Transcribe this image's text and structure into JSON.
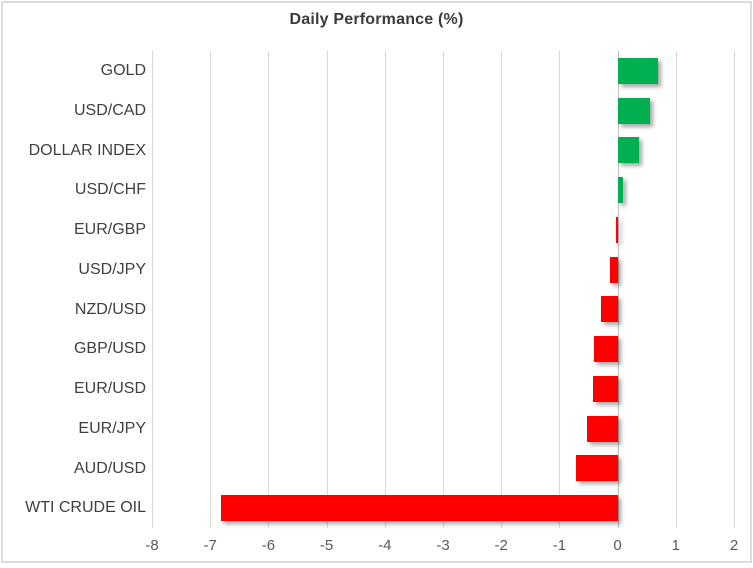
{
  "chart_data": {
    "type": "bar",
    "orientation": "horizontal",
    "title": "Daily Performance (%)",
    "categories": [
      "GOLD",
      "USD/CAD",
      "DOLLAR INDEX",
      "USD/CHF",
      "EUR/GBP",
      "USD/JPY",
      "NZD/USD",
      "GBP/USD",
      "EUR/USD",
      "EUR/JPY",
      "AUD/USD",
      "WTI CRUDE OIL"
    ],
    "values": [
      0.69,
      0.56,
      0.37,
      0.09,
      -0.03,
      -0.14,
      -0.28,
      -0.4,
      -0.42,
      -0.52,
      -0.72,
      -6.81
    ],
    "xlabel": "",
    "ylabel": "",
    "xlim": [
      -8,
      2
    ],
    "x_ticks": [
      -8,
      -7,
      -6,
      -5,
      -4,
      -3,
      -2,
      -1,
      0,
      1,
      2
    ],
    "grid": true,
    "legend": "none",
    "colors": {
      "positive": "#00B050",
      "negative": "#FF0000",
      "gridline": "#D9D9D9",
      "zero_axis": "#BFBFBF",
      "title_text": "#3B3B3B",
      "category_text": "#404040",
      "tick_text": "#595959",
      "border": "#DCDCDC"
    }
  }
}
